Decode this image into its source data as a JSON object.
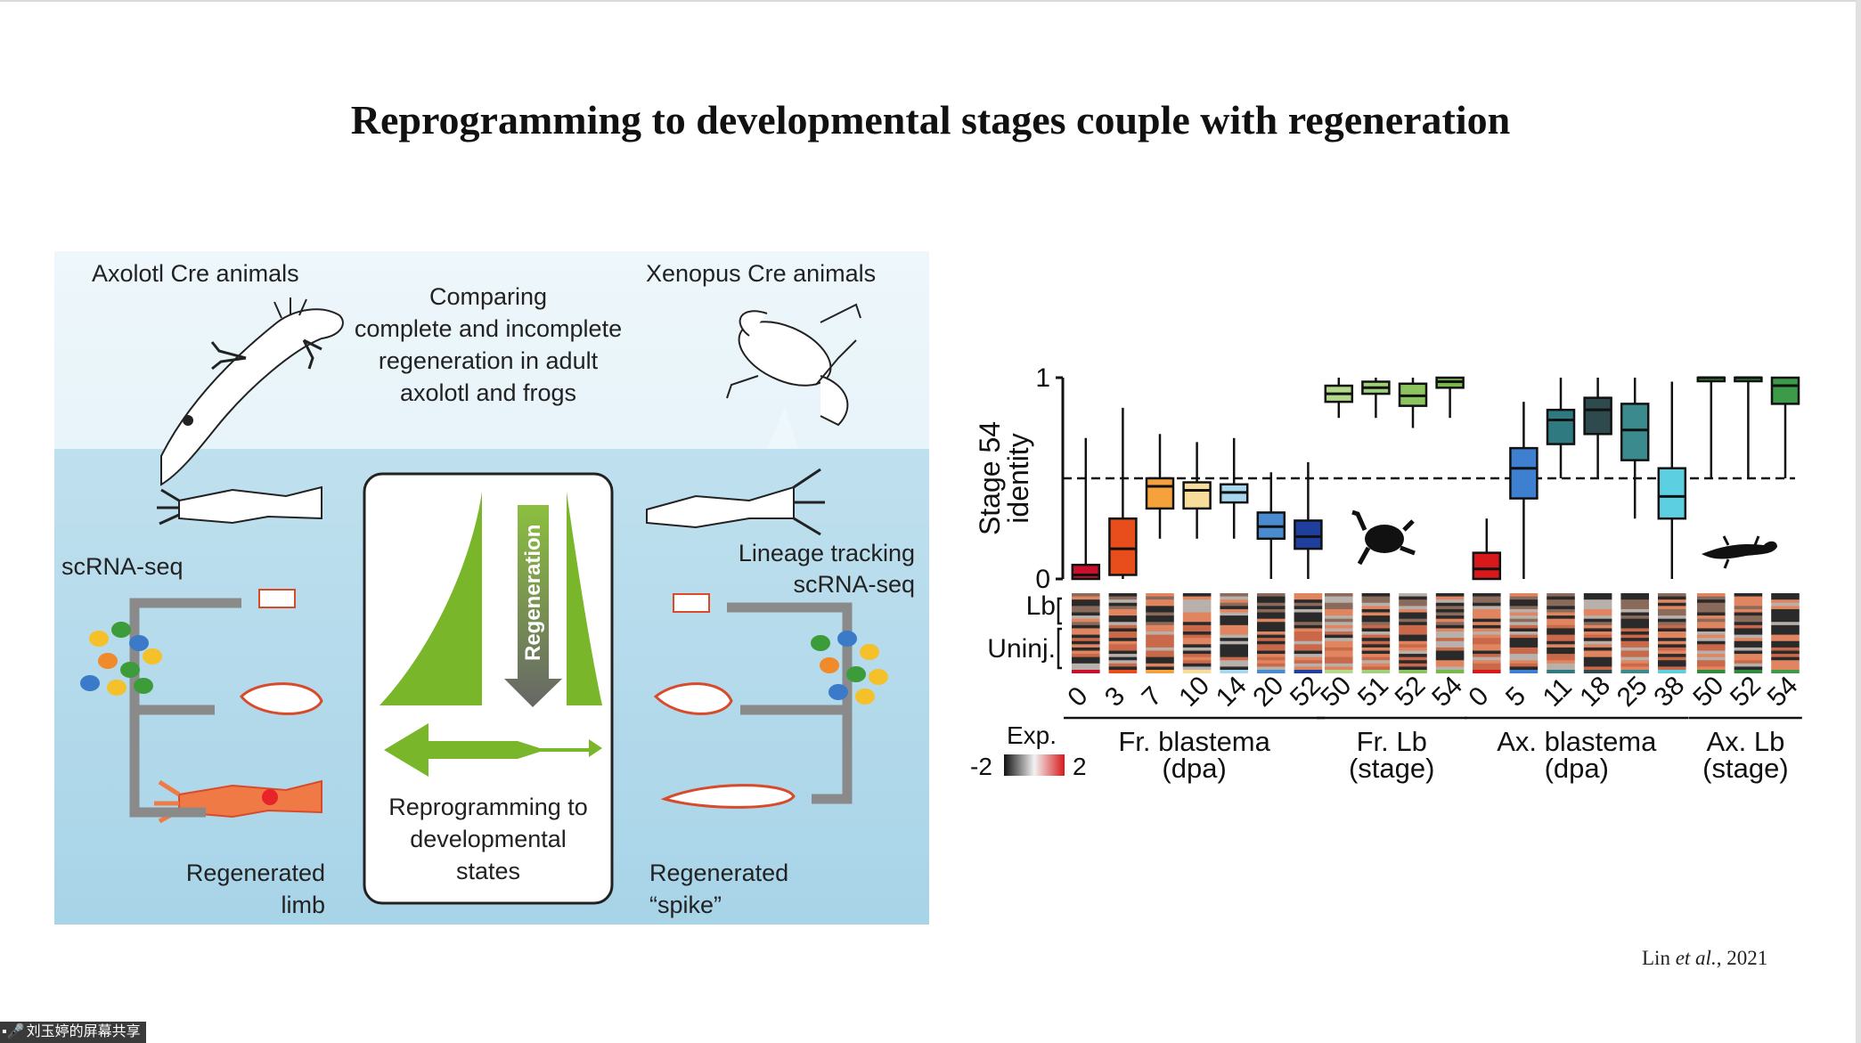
{
  "slide": {
    "title": "Reprogramming to developmental stages couple with regeneration",
    "citation_author": "Lin",
    "citation_etal": "et al.",
    "citation_year": ", 2021"
  },
  "left_figure": {
    "axolotl_header": "Axolotl Cre animals",
    "xenopus_header": "Xenopus Cre animals",
    "comparing_lines": [
      "Comparing",
      "complete and incomplete",
      "regeneration in adult",
      "axolotl and frogs"
    ],
    "scrna_label": "scRNA-seq",
    "lineage_lines": [
      "Lineage tracking",
      "scRNA-seq"
    ],
    "regeneration_arrow": "Regeneration",
    "reprogramming_lines": [
      "Reprogramming to",
      "developmental",
      "states"
    ],
    "regenerated_limb_lines": [
      "Regenerated",
      "limb"
    ],
    "regenerated_spike_lines": [
      "Regenerated",
      "“spike”"
    ]
  },
  "chart_data": {
    "type": "box",
    "ylabel_lines": [
      "Stage 54",
      "identity"
    ],
    "ylim": [
      0,
      1
    ],
    "y_ticks": [
      "0",
      "1"
    ],
    "reference_line": 0.5,
    "heatmap_row_labels": [
      "Lb",
      "Uninj."
    ],
    "legend_title": "Exp.",
    "legend_min": "-2",
    "legend_max": "2",
    "groups": [
      {
        "label_lines": [
          "Fr. blastema",
          "(dpa)"
        ],
        "categories": [
          "0",
          "3",
          "7",
          "10",
          "14",
          "20",
          "52"
        ]
      },
      {
        "label_lines": [
          "Fr. Lb",
          "(stage)"
        ],
        "categories": [
          "50",
          "51",
          "52",
          "54"
        ]
      },
      {
        "label_lines": [
          "Ax. blastema",
          "(dpa)"
        ],
        "categories": [
          "0",
          "5",
          "11",
          "18",
          "25",
          "38"
        ]
      },
      {
        "label_lines": [
          "Ax. Lb",
          "(stage)"
        ],
        "categories": [
          "50",
          "52",
          "54"
        ]
      }
    ],
    "boxes": [
      {
        "group": 0,
        "cat": "0",
        "min": 0.0,
        "q1": 0.0,
        "median": 0.02,
        "q3": 0.07,
        "max": 0.7,
        "color": "#c8102e"
      },
      {
        "group": 0,
        "cat": "3",
        "min": 0.0,
        "q1": 0.02,
        "median": 0.15,
        "q3": 0.3,
        "max": 0.85,
        "color": "#e84e1b"
      },
      {
        "group": 0,
        "cat": "7",
        "min": 0.2,
        "q1": 0.35,
        "median": 0.46,
        "q3": 0.5,
        "max": 0.72,
        "color": "#f6a23c"
      },
      {
        "group": 0,
        "cat": "10",
        "min": 0.2,
        "q1": 0.35,
        "median": 0.44,
        "q3": 0.48,
        "max": 0.68,
        "color": "#f8dc9a"
      },
      {
        "group": 0,
        "cat": "14",
        "min": 0.2,
        "q1": 0.38,
        "median": 0.43,
        "q3": 0.47,
        "max": 0.7,
        "color": "#a7d8ef"
      },
      {
        "group": 0,
        "cat": "20",
        "min": 0.0,
        "q1": 0.2,
        "median": 0.26,
        "q3": 0.33,
        "max": 0.53,
        "color": "#4a8bd0"
      },
      {
        "group": 0,
        "cat": "52",
        "min": 0.0,
        "q1": 0.15,
        "median": 0.21,
        "q3": 0.29,
        "max": 0.58,
        "color": "#1f3f9e"
      },
      {
        "group": 1,
        "cat": "50",
        "min": 0.8,
        "q1": 0.88,
        "median": 0.92,
        "q3": 0.96,
        "max": 1.0,
        "color": "#b3d98b"
      },
      {
        "group": 1,
        "cat": "51",
        "min": 0.8,
        "q1": 0.92,
        "median": 0.95,
        "q3": 0.98,
        "max": 1.0,
        "color": "#9fd07a"
      },
      {
        "group": 1,
        "cat": "52",
        "min": 0.75,
        "q1": 0.86,
        "median": 0.91,
        "q3": 0.97,
        "max": 1.0,
        "color": "#8cc45f"
      },
      {
        "group": 1,
        "cat": "54",
        "min": 0.8,
        "q1": 0.95,
        "median": 0.98,
        "q3": 1.0,
        "max": 1.0,
        "color": "#77b84a"
      },
      {
        "group": 2,
        "cat": "0",
        "min": 0.0,
        "q1": 0.0,
        "median": 0.05,
        "q3": 0.13,
        "max": 0.3,
        "color": "#d7191c"
      },
      {
        "group": 2,
        "cat": "5",
        "min": 0.0,
        "q1": 0.4,
        "median": 0.55,
        "q3": 0.65,
        "max": 0.88,
        "color": "#3f7fd0"
      },
      {
        "group": 2,
        "cat": "11",
        "min": 0.5,
        "q1": 0.67,
        "median": 0.79,
        "q3": 0.84,
        "max": 1.0,
        "color": "#2e7a80"
      },
      {
        "group": 2,
        "cat": "18",
        "min": 0.5,
        "q1": 0.72,
        "median": 0.84,
        "q3": 0.9,
        "max": 1.0,
        "color": "#2e4a4d"
      },
      {
        "group": 2,
        "cat": "25",
        "min": 0.3,
        "q1": 0.59,
        "median": 0.74,
        "q3": 0.87,
        "max": 1.0,
        "color": "#3a8a8e"
      },
      {
        "group": 2,
        "cat": "38",
        "min": 0.0,
        "q1": 0.3,
        "median": 0.41,
        "q3": 0.55,
        "max": 0.98,
        "color": "#5ccfe0"
      },
      {
        "group": 3,
        "cat": "50",
        "min": 0.5,
        "q1": 0.99,
        "median": 1.0,
        "q3": 1.0,
        "max": 1.0,
        "color": "#2f8a3c"
      },
      {
        "group": 3,
        "cat": "52",
        "min": 0.5,
        "q1": 0.99,
        "median": 1.0,
        "q3": 1.0,
        "max": 1.0,
        "color": "#2f8a3c"
      },
      {
        "group": 3,
        "cat": "54",
        "min": 0.5,
        "q1": 0.87,
        "median": 0.96,
        "q3": 1.0,
        "max": 1.0,
        "color": "#3c9a48"
      }
    ]
  },
  "share_badge": {
    "label": "刘玉婷的屏幕共享"
  }
}
